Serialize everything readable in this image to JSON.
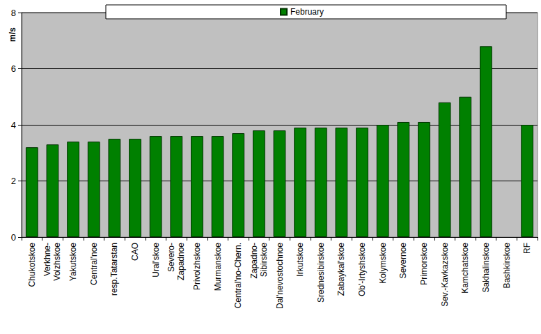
{
  "chart_data": {
    "type": "bar",
    "y_label": "m/s",
    "categories": [
      "Chukotskoe",
      "Verkhne-\nVolzhskoe",
      "Yakutskoe",
      "Central'noe",
      "resp.Tatarstan",
      "CAO",
      "Ural'skoe",
      "Severo-\nZapadnoe",
      "Privolzhskoe",
      "Murmanskoe",
      "Central'no-Chern.",
      "Zapadno-\nSibirskoe",
      "Dal'nevostochnoe",
      "Irkutskoe",
      "Srednesibirskoe",
      "Zabaykal'skoe",
      "Ob'-Irtyshskoe",
      "Kolymskoe",
      "Severnoe",
      "Primorskoe",
      "Sev.-Kavkazskoe",
      "Kamchatskoe",
      "Sakhalinskoe",
      "Bashkirskoe",
      "RF"
    ],
    "series": [
      {
        "name": "February",
        "color": "#008000",
        "values": [
          3.2,
          3.3,
          3.4,
          3.4,
          3.5,
          3.5,
          3.6,
          3.6,
          3.6,
          3.6,
          3.7,
          3.8,
          3.8,
          3.9,
          3.9,
          3.9,
          3.9,
          4.0,
          4.1,
          4.1,
          4.8,
          5.0,
          6.8,
          null,
          4.0
        ]
      }
    ],
    "ylim": [
      0,
      8
    ],
    "yticks": [
      0,
      2,
      4,
      6,
      8
    ],
    "grid": true,
    "legend": "top"
  }
}
